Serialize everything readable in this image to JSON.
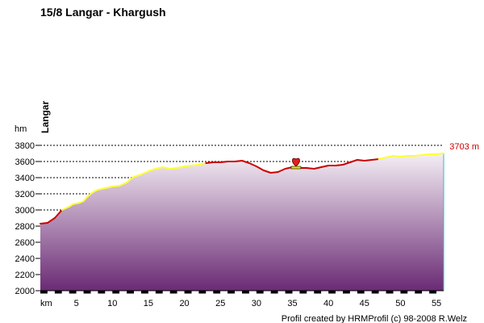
{
  "chart_data": {
    "type": "area",
    "title": "15/8 Langar - Khargush",
    "xlabel": "km",
    "ylabel": "hm",
    "xlim": [
      0,
      56
    ],
    "ylim": [
      2000,
      3800
    ],
    "x_ticks": [
      5,
      10,
      15,
      20,
      25,
      30,
      35,
      40,
      45,
      50,
      55
    ],
    "y_ticks": [
      2000,
      2200,
      2400,
      2600,
      2800,
      3000,
      3200,
      3400,
      3600,
      3800
    ],
    "grid": "horizontal dashed",
    "start_label": "Langar",
    "end_label": "3703 m",
    "footer": "Profil created by HRMProfil (c) 98-2008 R.Welz",
    "colors": {
      "climb": "#ffff33",
      "other": "#cc0000",
      "fill_top": "#f5eff5",
      "fill_bottom": "#6a2a74",
      "end_label": "#cc0000",
      "right_edge": "#33bbcc"
    },
    "markers": [
      {
        "x": 35.5,
        "y": 3580,
        "icon": "heart-icon"
      }
    ],
    "series": [
      {
        "x": [
          0,
          1,
          2,
          3,
          4,
          4.5,
          5,
          5.5,
          6,
          6.5,
          7,
          7.5,
          8,
          8.5,
          9,
          9.5,
          10,
          11,
          12,
          12.5,
          13,
          14,
          15,
          16,
          17,
          18,
          19,
          20,
          21,
          22,
          23,
          24,
          25,
          26,
          27,
          28,
          29,
          30,
          31,
          32,
          33,
          34,
          35,
          36,
          37,
          38,
          39,
          40,
          41,
          42,
          43,
          44,
          45,
          46,
          47,
          48,
          49,
          50,
          51,
          52,
          53,
          54,
          55,
          56
        ],
        "y": [
          2830,
          2840,
          2900,
          3000,
          3040,
          3070,
          3080,
          3090,
          3110,
          3160,
          3200,
          3230,
          3250,
          3260,
          3270,
          3280,
          3290,
          3300,
          3340,
          3380,
          3410,
          3440,
          3480,
          3510,
          3530,
          3510,
          3520,
          3540,
          3550,
          3560,
          3580,
          3590,
          3590,
          3600,
          3600,
          3610,
          3580,
          3540,
          3490,
          3460,
          3470,
          3510,
          3530,
          3520,
          3520,
          3510,
          3530,
          3550,
          3550,
          3560,
          3590,
          3620,
          3610,
          3620,
          3630,
          3650,
          3670,
          3660,
          3670,
          3670,
          3680,
          3690,
          3690,
          3703
        ],
        "segment_colors": [
          "other",
          "other",
          "other",
          "climb",
          "climb",
          "climb",
          "climb",
          "climb",
          "climb",
          "climb",
          "climb",
          "climb",
          "climb",
          "climb",
          "climb",
          "climb",
          "climb",
          "climb",
          "climb",
          "climb",
          "climb",
          "climb",
          "climb",
          "climb",
          "climb",
          "climb",
          "climb",
          "climb",
          "climb",
          "climb",
          "other",
          "other",
          "other",
          "other",
          "other",
          "other",
          "other",
          "other",
          "other",
          "other",
          "other",
          "other",
          "other",
          "other",
          "other",
          "other",
          "other",
          "other",
          "other",
          "other",
          "other",
          "other",
          "other",
          "other",
          "climb",
          "climb",
          "climb",
          "climb",
          "climb",
          "climb",
          "climb",
          "climb",
          "climb"
        ]
      }
    ]
  }
}
